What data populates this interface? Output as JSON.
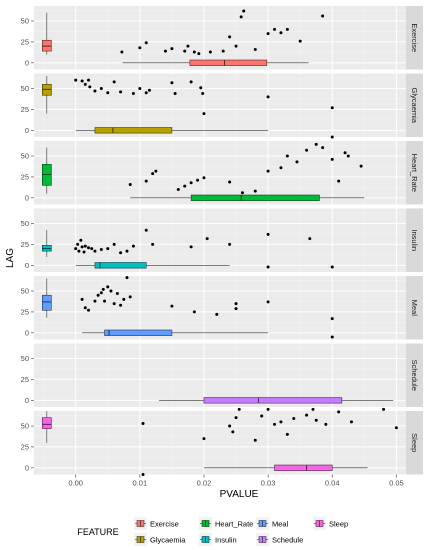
{
  "chart_data": {
    "type": "scatter",
    "title": "",
    "xlabel": "PVALUE",
    "ylabel": "LAG",
    "xlim": [
      -0.0065,
      0.0515
    ],
    "x_ticks": [
      0.0,
      0.01,
      0.02,
      0.03,
      0.04,
      0.05
    ],
    "x_tick_labels": [
      "0.00",
      "0.01",
      "0.02",
      "0.03",
      "0.04",
      "0.05"
    ],
    "ylim": [
      -8,
      68
    ],
    "y_ticks": [
      0,
      25,
      50,
      75
    ],
    "y_tick_labels": [
      "0",
      "25",
      "50",
      "75"
    ],
    "grid": true,
    "legend_position": "bottom",
    "legend_title": "FEATURE",
    "panels": [
      {
        "name": "Exercise",
        "color": "#F8766D",
        "lag_box": {
          "min": 10,
          "q1": 14,
          "median": 20,
          "q3": 27,
          "max": 60
        },
        "pvalue_box": {
          "min": 0.0073,
          "q1": 0.0178,
          "median": 0.0232,
          "q3": 0.0298,
          "max": 0.0363
        },
        "points": [
          {
            "x": 0.0072,
            "y": 13
          },
          {
            "x": 0.01,
            "y": 18
          },
          {
            "x": 0.011,
            "y": 24
          },
          {
            "x": 0.014,
            "y": 14
          },
          {
            "x": 0.015,
            "y": 17
          },
          {
            "x": 0.017,
            "y": 14
          },
          {
            "x": 0.0175,
            "y": 20
          },
          {
            "x": 0.0185,
            "y": 13
          },
          {
            "x": 0.0192,
            "y": 11
          },
          {
            "x": 0.021,
            "y": 13
          },
          {
            "x": 0.023,
            "y": 14
          },
          {
            "x": 0.024,
            "y": 31
          },
          {
            "x": 0.025,
            "y": 20
          },
          {
            "x": 0.0258,
            "y": 55
          },
          {
            "x": 0.0262,
            "y": 62
          },
          {
            "x": 0.028,
            "y": 16
          },
          {
            "x": 0.03,
            "y": 35
          },
          {
            "x": 0.031,
            "y": 40
          },
          {
            "x": 0.032,
            "y": 36
          },
          {
            "x": 0.033,
            "y": 40
          },
          {
            "x": 0.035,
            "y": 26
          },
          {
            "x": 0.0385,
            "y": 56
          }
        ]
      },
      {
        "name": "Glycaemia",
        "color": "#B79F00",
        "lag_box": {
          "min": 20,
          "q1": 42,
          "median": 49,
          "q3": 55,
          "max": 65
        },
        "pvalue_box": {
          "min": 0.0,
          "q1": 0.003,
          "median": 0.0058,
          "q3": 0.015,
          "max": 0.03
        },
        "points": [
          {
            "x": 0.0,
            "y": 60
          },
          {
            "x": 0.001,
            "y": 59
          },
          {
            "x": 0.0015,
            "y": 55
          },
          {
            "x": 0.002,
            "y": 60
          },
          {
            "x": 0.0022,
            "y": 52
          },
          {
            "x": 0.003,
            "y": 47
          },
          {
            "x": 0.004,
            "y": 50
          },
          {
            "x": 0.005,
            "y": 45
          },
          {
            "x": 0.006,
            "y": 58
          },
          {
            "x": 0.007,
            "y": 46
          },
          {
            "x": 0.009,
            "y": 44
          },
          {
            "x": 0.01,
            "y": 50
          },
          {
            "x": 0.011,
            "y": 45
          },
          {
            "x": 0.0115,
            "y": 48
          },
          {
            "x": 0.015,
            "y": 57
          },
          {
            "x": 0.0155,
            "y": 44
          },
          {
            "x": 0.018,
            "y": 58
          },
          {
            "x": 0.0195,
            "y": 51
          },
          {
            "x": 0.0198,
            "y": 44
          },
          {
            "x": 0.02,
            "y": 20
          },
          {
            "x": 0.03,
            "y": 40
          },
          {
            "x": 0.04,
            "y": 27
          },
          {
            "x": 0.04,
            "y": -8
          }
        ]
      },
      {
        "name": "Heart_Rate",
        "color": "#00BA38",
        "lag_box": {
          "min": 5,
          "q1": 15,
          "median": 28,
          "q3": 40,
          "max": 60
        },
        "pvalue_box": {
          "min": 0.0085,
          "q1": 0.018,
          "median": 0.0258,
          "q3": 0.038,
          "max": 0.045
        },
        "points": [
          {
            "x": 0.0085,
            "y": 16
          },
          {
            "x": 0.011,
            "y": 20
          },
          {
            "x": 0.012,
            "y": 29
          },
          {
            "x": 0.0125,
            "y": 32
          },
          {
            "x": 0.016,
            "y": 10
          },
          {
            "x": 0.017,
            "y": 14
          },
          {
            "x": 0.018,
            "y": 18
          },
          {
            "x": 0.019,
            "y": 21
          },
          {
            "x": 0.02,
            "y": 24
          },
          {
            "x": 0.024,
            "y": 19
          },
          {
            "x": 0.026,
            "y": 6
          },
          {
            "x": 0.028,
            "y": 8
          },
          {
            "x": 0.03,
            "y": 32
          },
          {
            "x": 0.032,
            "y": 36
          },
          {
            "x": 0.033,
            "y": 50
          },
          {
            "x": 0.0345,
            "y": 43
          },
          {
            "x": 0.036,
            "y": 57
          },
          {
            "x": 0.0375,
            "y": 64
          },
          {
            "x": 0.0385,
            "y": 60
          },
          {
            "x": 0.04,
            "y": 46
          },
          {
            "x": 0.041,
            "y": 20
          },
          {
            "x": 0.042,
            "y": 54
          },
          {
            "x": 0.0425,
            "y": 50
          },
          {
            "x": 0.0445,
            "y": 38
          }
        ]
      },
      {
        "name": "Insulin",
        "color": "#00BFC4",
        "lag_box": {
          "min": 10,
          "q1": 17,
          "median": 20,
          "q3": 24,
          "max": 42
        },
        "pvalue_box": {
          "min": 0.0,
          "q1": 0.003,
          "median": 0.0038,
          "q3": 0.011,
          "max": 0.024
        },
        "points": [
          {
            "x": 0.0,
            "y": 20
          },
          {
            "x": 0.0003,
            "y": 25
          },
          {
            "x": 0.0005,
            "y": 17
          },
          {
            "x": 0.0008,
            "y": 30
          },
          {
            "x": 0.001,
            "y": 22
          },
          {
            "x": 0.0013,
            "y": 16
          },
          {
            "x": 0.0015,
            "y": 23
          },
          {
            "x": 0.002,
            "y": 21
          },
          {
            "x": 0.0025,
            "y": 20
          },
          {
            "x": 0.003,
            "y": 17
          },
          {
            "x": 0.004,
            "y": 19
          },
          {
            "x": 0.005,
            "y": 20
          },
          {
            "x": 0.006,
            "y": 25
          },
          {
            "x": 0.007,
            "y": 15
          },
          {
            "x": 0.008,
            "y": 17
          },
          {
            "x": 0.009,
            "y": 23
          },
          {
            "x": 0.011,
            "y": 42
          },
          {
            "x": 0.012,
            "y": 25
          },
          {
            "x": 0.018,
            "y": 22
          },
          {
            "x": 0.0205,
            "y": 32
          },
          {
            "x": 0.024,
            "y": 25
          },
          {
            "x": 0.03,
            "y": 37
          },
          {
            "x": 0.03,
            "y": -2
          },
          {
            "x": 0.0365,
            "y": 32
          },
          {
            "x": 0.04,
            "y": -2
          }
        ]
      },
      {
        "name": "Meal",
        "color": "#619CFF",
        "lag_box": {
          "min": 18,
          "q1": 27,
          "median": 37,
          "q3": 45,
          "max": 65
        },
        "pvalue_box": {
          "min": 0.001,
          "q1": 0.0045,
          "median": 0.0052,
          "q3": 0.015,
          "max": 0.03
        },
        "points": [
          {
            "x": 0.001,
            "y": 40
          },
          {
            "x": 0.0015,
            "y": 30
          },
          {
            "x": 0.002,
            "y": 27
          },
          {
            "x": 0.003,
            "y": 38
          },
          {
            "x": 0.0035,
            "y": 45
          },
          {
            "x": 0.004,
            "y": 48
          },
          {
            "x": 0.0043,
            "y": 52
          },
          {
            "x": 0.0045,
            "y": 38
          },
          {
            "x": 0.005,
            "y": 55
          },
          {
            "x": 0.0055,
            "y": 50
          },
          {
            "x": 0.006,
            "y": 35
          },
          {
            "x": 0.0065,
            "y": 47
          },
          {
            "x": 0.007,
            "y": 33
          },
          {
            "x": 0.0075,
            "y": 40
          },
          {
            "x": 0.008,
            "y": 66
          },
          {
            "x": 0.0085,
            "y": 43
          },
          {
            "x": 0.015,
            "y": 32
          },
          {
            "x": 0.0185,
            "y": 25
          },
          {
            "x": 0.022,
            "y": 22
          },
          {
            "x": 0.025,
            "y": 35
          },
          {
            "x": 0.025,
            "y": 29
          },
          {
            "x": 0.03,
            "y": 37
          },
          {
            "x": 0.04,
            "y": 17
          },
          {
            "x": 0.04,
            "y": -5
          }
        ]
      },
      {
        "name": "Schedule",
        "color": "#C77CFF",
        "lag_box": null,
        "pvalue_box": {
          "min": 0.013,
          "q1": 0.02,
          "median": 0.0285,
          "q3": 0.0415,
          "max": 0.0495
        },
        "points": []
      },
      {
        "name": "Sleep",
        "color": "#F564E3",
        "lag_box": {
          "min": 30,
          "q1": 47,
          "median": 52,
          "q3": 60,
          "max": 68
        },
        "pvalue_box": {
          "min": 0.02,
          "q1": 0.031,
          "median": 0.036,
          "q3": 0.04,
          "max": 0.0455
        },
        "points": [
          {
            "x": 0.0105,
            "y": 53
          },
          {
            "x": 0.0105,
            "y": -8
          },
          {
            "x": 0.02,
            "y": 35
          },
          {
            "x": 0.024,
            "y": 50
          },
          {
            "x": 0.0245,
            "y": 43
          },
          {
            "x": 0.025,
            "y": 60
          },
          {
            "x": 0.0255,
            "y": 70
          },
          {
            "x": 0.028,
            "y": 33
          },
          {
            "x": 0.029,
            "y": 62
          },
          {
            "x": 0.03,
            "y": 70
          },
          {
            "x": 0.031,
            "y": 52
          },
          {
            "x": 0.032,
            "y": 55
          },
          {
            "x": 0.033,
            "y": 40
          },
          {
            "x": 0.034,
            "y": 59
          },
          {
            "x": 0.036,
            "y": 63
          },
          {
            "x": 0.037,
            "y": 70
          },
          {
            "x": 0.0375,
            "y": 57
          },
          {
            "x": 0.039,
            "y": 52
          },
          {
            "x": 0.041,
            "y": 67
          },
          {
            "x": 0.043,
            "y": 55
          },
          {
            "x": 0.048,
            "y": 70
          },
          {
            "x": 0.05,
            "y": 48
          }
        ]
      }
    ]
  }
}
